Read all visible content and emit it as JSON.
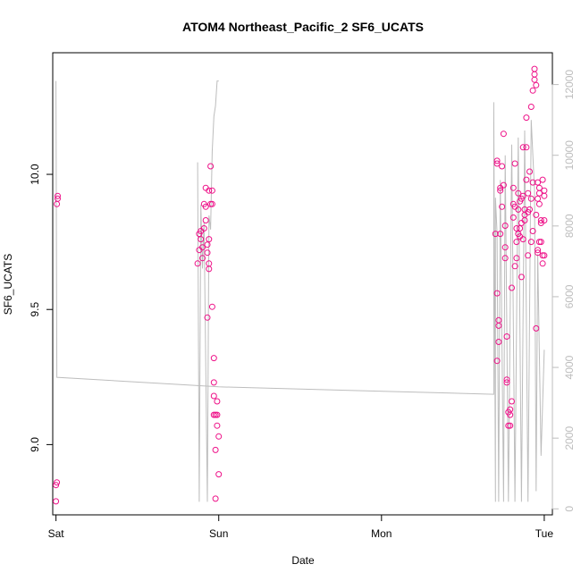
{
  "chart_data": {
    "type": "scatter",
    "title": "ATOM4 Northeast_Pacific_2 SF6_UCATS",
    "xlabel": "Date",
    "ylabel": "SF6_UCATS",
    "xlim": [
      -0.02,
      3.05
    ],
    "ylim": [
      8.74,
      10.45
    ],
    "y2lim": [
      -170,
      12900
    ],
    "x_ticks": [
      {
        "value": 0,
        "label": "Sat"
      },
      {
        "value": 1,
        "label": "Sun"
      },
      {
        "value": 2,
        "label": "Mon"
      },
      {
        "value": 3,
        "label": "Tue"
      }
    ],
    "y_ticks": [
      {
        "value": 9.0,
        "label": "9.0"
      },
      {
        "value": 9.5,
        "label": "9.5"
      },
      {
        "value": 10.0,
        "label": "10.0"
      }
    ],
    "y2_ticks": [
      {
        "value": 0,
        "label": "0"
      },
      {
        "value": 2000,
        "label": "2000"
      },
      {
        "value": 4000,
        "label": "4000"
      },
      {
        "value": 6000,
        "label": "6000"
      },
      {
        "value": 8000,
        "label": "8000"
      },
      {
        "value": 10000,
        "label": "10000"
      },
      {
        "value": 12000,
        "label": "12000"
      }
    ],
    "colors": {
      "points": "#ee1188",
      "altitude_line": "#bdbdbd",
      "axis": "#000000",
      "right_axis": "#bdbdbd"
    },
    "grid": false,
    "series": [
      {
        "kind": "points",
        "values": [
          [
            0.01,
            9.92
          ],
          [
            0.01,
            9.91
          ],
          [
            0.005,
            9.89
          ],
          [
            0.005,
            8.86
          ],
          [
            0.0,
            8.85
          ],
          [
            0.0,
            8.79
          ],
          [
            0.87,
            9.67
          ],
          [
            0.88,
            9.72
          ],
          [
            0.88,
            9.78
          ],
          [
            0.89,
            9.79
          ],
          [
            0.89,
            9.76
          ],
          [
            0.9,
            9.73
          ],
          [
            0.9,
            9.69
          ],
          [
            0.91,
            9.89
          ],
          [
            0.91,
            9.8
          ],
          [
            0.92,
            9.88
          ],
          [
            0.92,
            9.83
          ],
          [
            0.92,
            9.95
          ],
          [
            0.93,
            9.47
          ],
          [
            0.93,
            9.74
          ],
          [
            0.93,
            9.71
          ],
          [
            0.94,
            9.67
          ],
          [
            0.94,
            9.65
          ],
          [
            0.94,
            9.76
          ],
          [
            0.94,
            9.94
          ],
          [
            0.95,
            9.89
          ],
          [
            0.95,
            10.03
          ],
          [
            0.96,
            9.94
          ],
          [
            0.96,
            9.89
          ],
          [
            0.96,
            9.51
          ],
          [
            0.97,
            9.32
          ],
          [
            0.97,
            9.23
          ],
          [
            0.97,
            9.18
          ],
          [
            0.97,
            9.11
          ],
          [
            0.98,
            9.11
          ],
          [
            0.98,
            8.98
          ],
          [
            0.98,
            8.8
          ],
          [
            0.99,
            9.16
          ],
          [
            0.99,
            9.07
          ],
          [
            0.99,
            9.11
          ],
          [
            1.0,
            9.03
          ],
          [
            1.0,
            8.89
          ]
        ]
      },
      {
        "kind": "points",
        "values": [
          [
            2.7,
            9.78
          ],
          [
            2.71,
            10.05
          ],
          [
            2.71,
            10.04
          ],
          [
            2.71,
            9.56
          ],
          [
            2.72,
            9.46
          ],
          [
            2.72,
            9.44
          ],
          [
            2.72,
            9.38
          ],
          [
            2.71,
            9.31
          ],
          [
            2.73,
            9.95
          ],
          [
            2.73,
            9.94
          ],
          [
            2.73,
            9.78
          ],
          [
            2.74,
            9.88
          ],
          [
            2.74,
            10.03
          ],
          [
            2.75,
            10.15
          ],
          [
            2.75,
            9.96
          ],
          [
            2.76,
            9.81
          ],
          [
            2.76,
            9.73
          ],
          [
            2.76,
            9.69
          ],
          [
            2.77,
            9.4
          ],
          [
            2.77,
            9.24
          ],
          [
            2.77,
            9.23
          ],
          [
            2.78,
            9.12
          ],
          [
            2.78,
            9.07
          ],
          [
            2.79,
            9.07
          ],
          [
            2.79,
            9.11
          ],
          [
            2.79,
            9.13
          ],
          [
            2.8,
            9.16
          ],
          [
            2.8,
            9.58
          ],
          [
            2.81,
            9.84
          ],
          [
            2.81,
            9.89
          ],
          [
            2.81,
            9.95
          ],
          [
            2.82,
            9.88
          ],
          [
            2.82,
            10.04
          ],
          [
            2.82,
            9.66
          ],
          [
            2.83,
            9.8
          ],
          [
            2.83,
            9.75
          ],
          [
            2.84,
            9.78
          ],
          [
            2.84,
            9.87
          ],
          [
            2.84,
            9.93
          ],
          [
            2.85,
            9.8
          ],
          [
            2.85,
            9.9
          ],
          [
            2.85,
            9.77
          ],
          [
            2.86,
            9.82
          ],
          [
            2.86,
            9.62
          ],
          [
            2.87,
            9.76
          ],
          [
            2.87,
            10.1
          ],
          [
            2.87,
            9.92
          ],
          [
            2.88,
            9.87
          ],
          [
            2.88,
            9.83
          ],
          [
            2.88,
            9.85
          ],
          [
            2.89,
            10.1
          ],
          [
            2.89,
            10.21
          ],
          [
            2.89,
            9.98
          ],
          [
            2.9,
            9.7
          ],
          [
            2.9,
            9.86
          ],
          [
            2.9,
            9.93
          ],
          [
            2.91,
            10.01
          ],
          [
            2.91,
            9.87
          ],
          [
            2.92,
            10.25
          ],
          [
            2.92,
            9.91
          ],
          [
            2.93,
            9.79
          ],
          [
            2.93,
            9.97
          ],
          [
            2.93,
            10.31
          ],
          [
            2.94,
            10.39
          ],
          [
            2.94,
            10.35
          ],
          [
            2.94,
            10.37
          ],
          [
            2.95,
            10.33
          ],
          [
            2.95,
            9.85
          ],
          [
            2.95,
            9.43
          ],
          [
            2.96,
            9.72
          ],
          [
            2.96,
            9.91
          ],
          [
            2.96,
            9.97
          ],
          [
            2.97,
            9.93
          ],
          [
            2.97,
            9.95
          ],
          [
            2.97,
            9.75
          ],
          [
            2.98,
            9.82
          ],
          [
            2.98,
            9.83
          ],
          [
            2.98,
            9.75
          ],
          [
            2.99,
            9.98
          ],
          [
            2.99,
            9.7
          ],
          [
            2.99,
            9.67
          ],
          [
            3.0,
            9.83
          ],
          [
            3.0,
            9.92
          ],
          [
            3.0,
            9.94
          ],
          [
            3.0,
            9.7
          ],
          [
            2.97,
            9.89
          ],
          [
            2.96,
            9.71
          ],
          [
            2.92,
            9.75
          ],
          [
            2.86,
            9.91
          ],
          [
            2.83,
            9.69
          ]
        ]
      },
      {
        "kind": "altitude_line",
        "axis": "right",
        "values": [
          [
            0.0,
            12100
          ],
          [
            0.005,
            3720
          ],
          [
            1.0,
            3450
          ],
          [
            2.69,
            3240
          ],
          [
            2.69,
            11500
          ],
          [
            2.7,
            200
          ],
          [
            2.7,
            8800
          ],
          [
            2.71,
            7800
          ],
          [
            2.72,
            200
          ],
          [
            2.73,
            9300
          ],
          [
            2.75,
            200
          ],
          [
            2.76,
            10000
          ],
          [
            2.78,
            200
          ],
          [
            2.8,
            10300
          ],
          [
            2.82,
            200
          ],
          [
            2.84,
            10500
          ],
          [
            2.86,
            200
          ],
          [
            2.88,
            10700
          ],
          [
            2.9,
            200
          ],
          [
            2.92,
            11000
          ],
          [
            2.94,
            9000
          ],
          [
            2.95,
            500
          ],
          [
            2.96,
            7200
          ],
          [
            2.98,
            1500
          ],
          [
            3.0,
            4500
          ]
        ]
      },
      {
        "kind": "altitude_line",
        "axis": "right",
        "values": [
          [
            0.87,
            9800
          ],
          [
            0.88,
            200
          ],
          [
            0.89,
            8600
          ],
          [
            0.9,
            6800
          ],
          [
            0.91,
            8100
          ],
          [
            0.93,
            200
          ],
          [
            0.94,
            8300
          ],
          [
            0.95,
            7900
          ],
          [
            0.96,
            10100
          ],
          [
            0.97,
            11100
          ],
          [
            0.98,
            11400
          ],
          [
            0.99,
            12100
          ],
          [
            1.0,
            12100
          ]
        ]
      }
    ]
  }
}
